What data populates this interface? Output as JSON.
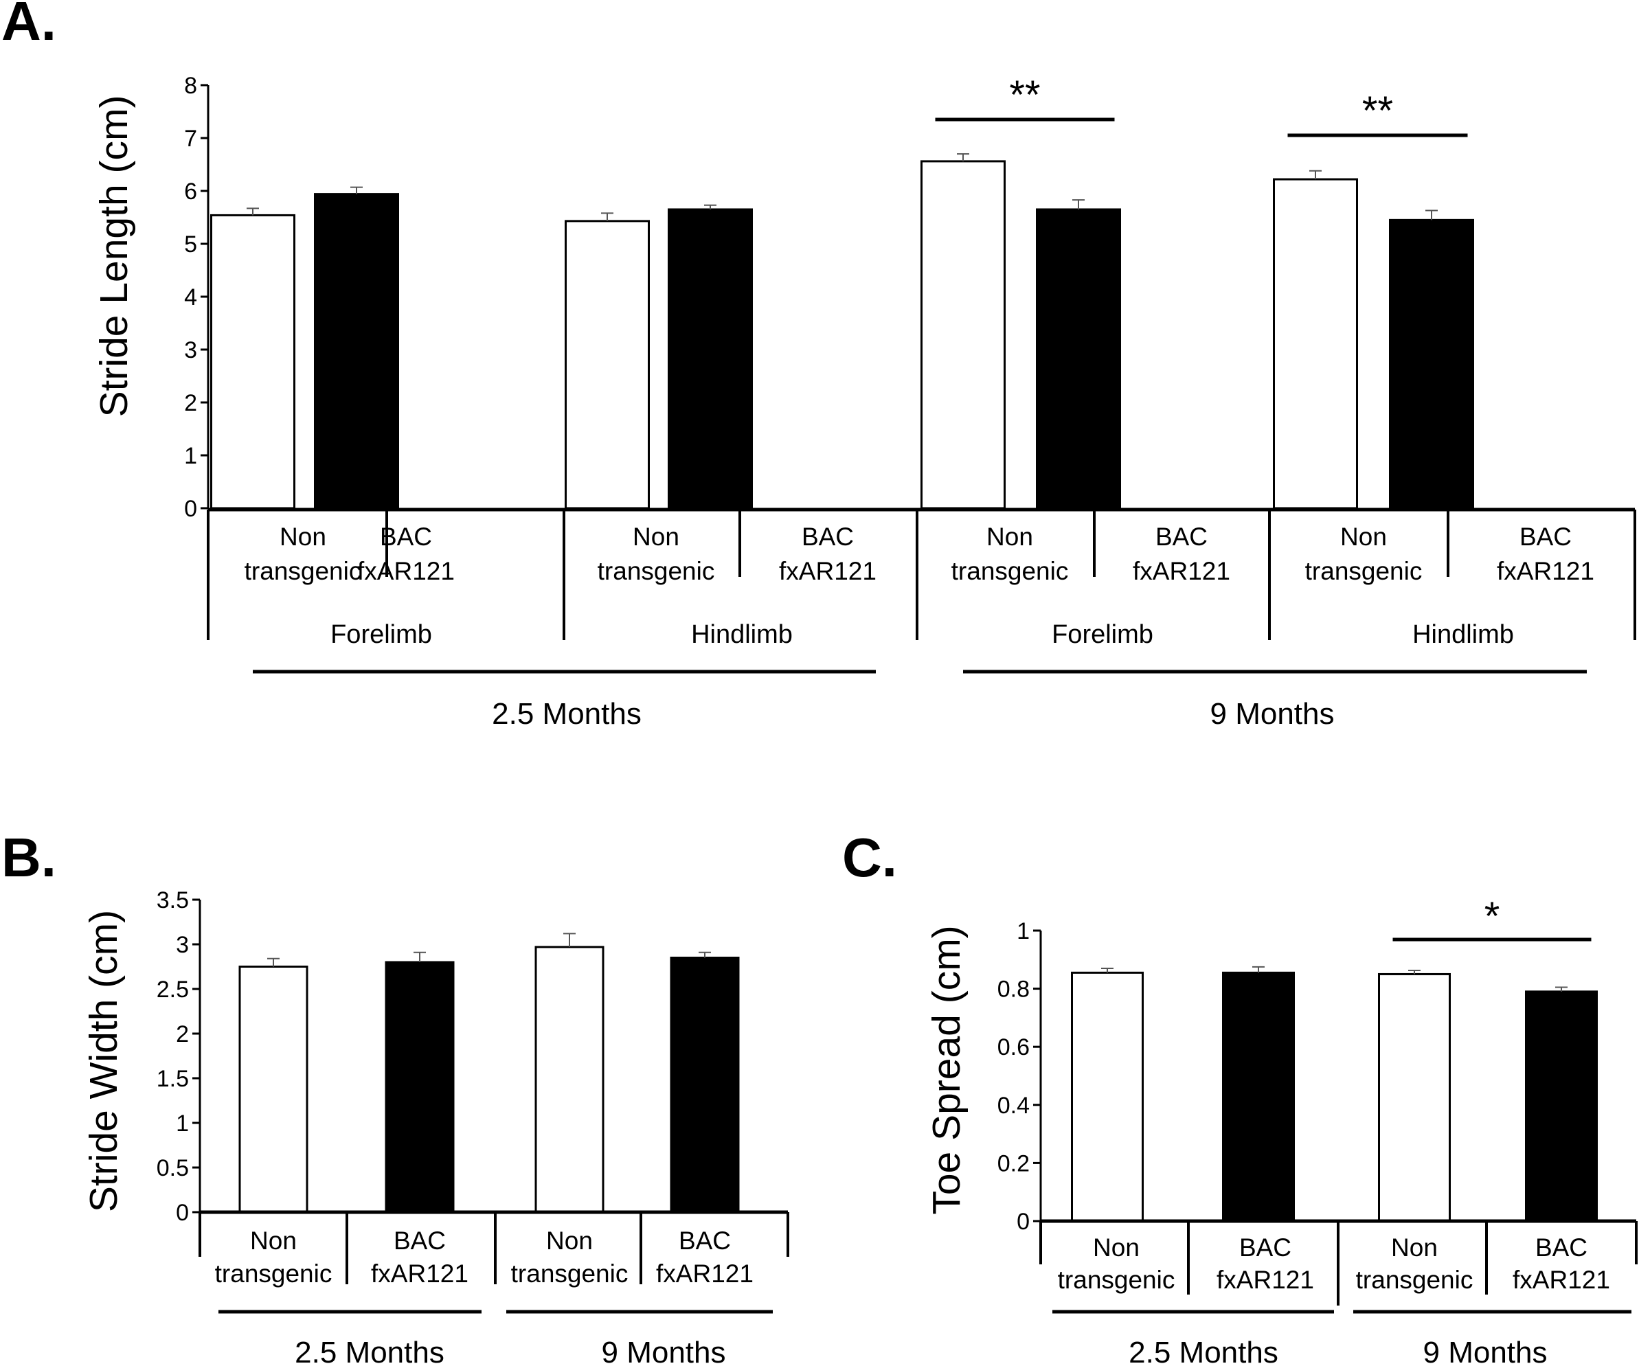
{
  "colors": {
    "control": "#ffffff",
    "transgenic": "#000000",
    "outline": "#000000",
    "error": "#555555"
  },
  "chart_data": [
    {
      "panel": "A.",
      "type": "bar",
      "ylabel": "Stride Length (cm)",
      "ylim": [
        0,
        8
      ],
      "yticks": [
        "0",
        "1",
        "2",
        "3",
        "4",
        "5",
        "6",
        "7",
        "8"
      ],
      "bars": [
        {
          "line1": "Non",
          "line2": "transgenic",
          "value": 5.54,
          "error": 0.13,
          "fill": "control"
        },
        {
          "line1": "BAC",
          "line2": "fxAR121",
          "value": 5.94,
          "error": 0.13,
          "fill": "transgenic"
        },
        {
          "line1": "Non",
          "line2": "transgenic",
          "value": 5.43,
          "error": 0.15,
          "fill": "control"
        },
        {
          "line1": "BAC",
          "line2": "fxAR121",
          "value": 5.65,
          "error": 0.08,
          "fill": "transgenic"
        },
        {
          "line1": "Non",
          "line2": "transgenic",
          "value": 6.56,
          "error": 0.14,
          "fill": "control"
        },
        {
          "line1": "BAC",
          "line2": "fxAR121",
          "value": 5.65,
          "error": 0.18,
          "fill": "transgenic"
        },
        {
          "line1": "Non",
          "line2": "transgenic",
          "value": 6.22,
          "error": 0.16,
          "fill": "control"
        },
        {
          "line1": "BAC",
          "line2": "fxAR121",
          "value": 5.45,
          "error": 0.18,
          "fill": "transgenic"
        }
      ],
      "limb_groups": [
        "Forelimb",
        "Hindlimb",
        "Forelimb",
        "Hindlimb"
      ],
      "time_groups": [
        "2.5 Months",
        "9 Months"
      ],
      "significance": [
        {
          "from_bar": 4,
          "to_bar": 5,
          "label": "**"
        },
        {
          "from_bar": 6,
          "to_bar": 7,
          "label": "**"
        }
      ]
    },
    {
      "panel": "B.",
      "type": "bar",
      "ylabel": "Stride Width (cm)",
      "ylim": [
        0,
        3.5
      ],
      "yticks": [
        "0",
        "0.5",
        "1",
        "1.5",
        "2",
        "2.5",
        "3",
        "3.5"
      ],
      "bars": [
        {
          "line1": "Non",
          "line2": "transgenic",
          "value": 2.75,
          "error": 0.09,
          "fill": "control"
        },
        {
          "line1": "BAC",
          "line2": "fxAR121",
          "value": 2.8,
          "error": 0.11,
          "fill": "transgenic"
        },
        {
          "line1": "Non",
          "line2": "transgenic",
          "value": 2.97,
          "error": 0.15,
          "fill": "control"
        },
        {
          "line1": "BAC",
          "line2": "fxAR121",
          "value": 2.85,
          "error": 0.06,
          "fill": "transgenic"
        }
      ],
      "time_groups": [
        "2.5 Months",
        "9 Months"
      ],
      "significance": []
    },
    {
      "panel": "C.",
      "type": "bar",
      "ylabel": "Toe Spread (cm)",
      "ylim": [
        0,
        1
      ],
      "yticks": [
        "0",
        "0.2",
        "0.4",
        "0.6",
        "0.8",
        "1"
      ],
      "bars": [
        {
          "line1": "Non",
          "line2": "transgenic",
          "value": 0.855,
          "error": 0.015,
          "fill": "control"
        },
        {
          "line1": "BAC",
          "line2": "fxAR121",
          "value": 0.855,
          "error": 0.02,
          "fill": "transgenic"
        },
        {
          "line1": "Non",
          "line2": "transgenic",
          "value": 0.85,
          "error": 0.013,
          "fill": "control"
        },
        {
          "line1": "BAC",
          "line2": "fxAR121",
          "value": 0.79,
          "error": 0.015,
          "fill": "transgenic"
        }
      ],
      "time_groups": [
        "2.5 Months",
        "9 Months"
      ],
      "significance": [
        {
          "from_bar": 2,
          "to_bar": 3,
          "label": "*"
        }
      ]
    }
  ]
}
